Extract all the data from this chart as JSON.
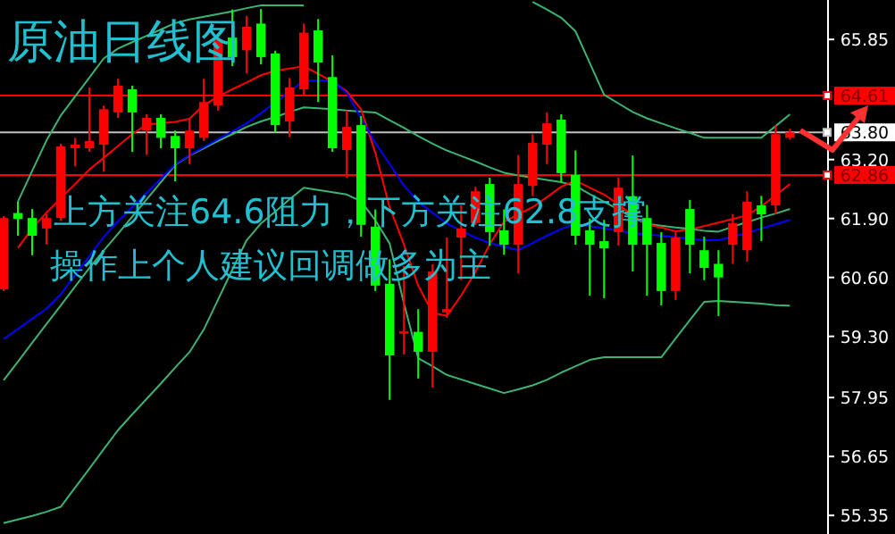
{
  "chart_data": {
    "type": "candlestick",
    "title": "原油日线图",
    "annotations": [
      "上方关注64.6阻力，下方关注62.8支撑",
      "操作上个人建议回调做多为主"
    ],
    "categories": [
      null,
      null,
      null,
      null,
      null,
      null,
      null,
      null,
      null,
      null,
      null,
      null,
      null,
      null,
      null,
      null,
      null,
      null,
      null,
      null,
      null,
      null,
      null,
      null,
      null,
      null,
      null,
      null,
      null,
      null,
      null,
      null,
      null,
      null,
      null,
      null,
      null,
      null,
      null,
      null,
      null,
      null,
      null,
      null,
      null,
      null,
      null,
      null,
      null,
      null,
      null,
      null,
      null,
      null,
      null,
      null
    ],
    "ohlc": [
      [
        60.34,
        61.95,
        60.3,
        61.91
      ],
      [
        62.02,
        62.27,
        61.52,
        61.89
      ],
      [
        61.91,
        62.11,
        61.09,
        61.52
      ],
      [
        61.68,
        62.0,
        61.33,
        61.91
      ],
      [
        61.91,
        63.55,
        61.85,
        63.49
      ],
      [
        63.45,
        63.68,
        63.05,
        63.53
      ],
      [
        63.45,
        64.79,
        63.37,
        63.61
      ],
      [
        63.53,
        64.39,
        62.93,
        64.31
      ],
      [
        64.24,
        64.98,
        64.12,
        64.83
      ],
      [
        64.75,
        64.83,
        63.37,
        64.24
      ],
      [
        63.84,
        64.2,
        63.3,
        64.12
      ],
      [
        64.12,
        64.2,
        63.45,
        63.68
      ],
      [
        63.72,
        63.84,
        62.72,
        63.45
      ],
      [
        63.45,
        64.1,
        63.1,
        63.84
      ],
      [
        63.68,
        64.98,
        63.61,
        64.47
      ],
      [
        64.39,
        65.89,
        64.28,
        65.85
      ],
      [
        65.89,
        66.51,
        65.26,
        65.46
      ],
      [
        65.61,
        66.37,
        65.1,
        66.13
      ],
      [
        66.2,
        66.52,
        65.3,
        65.46
      ],
      [
        65.54,
        65.6,
        63.8,
        63.96
      ],
      [
        64.04,
        65.0,
        63.7,
        64.79
      ],
      [
        64.75,
        66.2,
        64.6,
        66.0
      ],
      [
        66.05,
        66.3,
        64.47,
        65.34
      ],
      [
        65.02,
        65.5,
        63.37,
        63.45
      ],
      [
        63.41,
        64.28,
        62.8,
        63.92
      ],
      [
        63.96,
        64.16,
        61.5,
        61.76
      ],
      [
        61.72,
        62.1,
        60.3,
        60.42
      ],
      [
        60.46,
        61.0,
        57.9,
        58.88
      ],
      [
        59.36,
        60.85,
        58.9,
        59.41
      ],
      [
        59.4,
        59.9,
        58.37,
        58.96
      ],
      [
        58.96,
        60.89,
        58.17,
        60.73
      ],
      [
        59.83,
        61.48,
        59.71,
        59.9
      ],
      [
        61.48,
        62.19,
        60.54,
        61.68
      ],
      [
        61.8,
        62.6,
        61.76,
        62.5
      ],
      [
        62.66,
        62.8,
        61.3,
        61.6
      ],
      [
        61.64,
        62.1,
        61.1,
        61.32
      ],
      [
        61.32,
        63.3,
        60.69,
        62.66
      ],
      [
        62.62,
        63.76,
        62.4,
        63.57
      ],
      [
        63.53,
        64.24,
        63.1,
        64.0
      ],
      [
        64.08,
        64.2,
        62.7,
        62.9
      ],
      [
        62.86,
        63.4,
        61.32,
        61.52
      ],
      [
        61.64,
        61.9,
        60.2,
        61.32
      ],
      [
        61.4,
        61.87,
        60.14,
        61.24
      ],
      [
        61.6,
        62.8,
        61.3,
        62.58
      ],
      [
        62.39,
        63.29,
        60.73,
        61.32
      ],
      [
        61.91,
        62.2,
        60.2,
        61.32
      ],
      [
        61.36,
        61.6,
        59.98,
        60.3
      ],
      [
        60.3,
        61.6,
        60.1,
        61.48
      ],
      [
        62.11,
        62.31,
        60.69,
        61.32
      ],
      [
        61.2,
        61.5,
        60.54,
        60.81
      ],
      [
        60.9,
        61.2,
        59.75,
        60.6
      ],
      [
        61.32,
        62.0,
        60.9,
        61.8
      ],
      [
        61.2,
        62.5,
        60.95,
        62.27
      ],
      [
        62.19,
        62.4,
        61.4,
        61.99
      ],
      [
        62.19,
        63.96,
        61.99,
        63.76
      ],
      [
        63.68,
        63.88,
        63.64,
        63.8
      ]
    ],
    "colors": [
      "#ff0000",
      "#00ff00",
      "#00ff00",
      "#ff0000",
      "#ff0000",
      "#ff0000",
      "#ff0000",
      "#ff0000",
      "#ff0000",
      "#00ff00",
      "#ff0000",
      "#00ff00",
      "#00ff00",
      "#ff0000",
      "#ff0000",
      "#ff0000",
      "#00ff00",
      "#ff0000",
      "#00ff00",
      "#00ff00",
      "#ff0000",
      "#ff0000",
      "#00ff00",
      "#00ff00",
      "#ff0000",
      "#00ff00",
      "#00ff00",
      "#00ff00",
      "#ff0000",
      "#00ff00",
      "#ff0000",
      "#ff0000",
      "#ff0000",
      "#ff0000",
      "#00ff00",
      "#00ff00",
      "#ff0000",
      "#ff0000",
      "#ff0000",
      "#00ff00",
      "#00ff00",
      "#00ff00",
      "#00ff00",
      "#ff0000",
      "#00ff00",
      "#00ff00",
      "#00ff00",
      "#ff0000",
      "#00ff00",
      "#00ff00",
      "#00ff00",
      "#ff0000",
      "#ff0000",
      "#00ff00",
      "#ff0000",
      "#ff0000"
    ],
    "series": [
      {
        "type": "line",
        "color": "#3cb371",
        "values": [
          null,
          62.27,
          62.95,
          63.62,
          64.17,
          64.59,
          65.01,
          65.43,
          65.65,
          65.79,
          65.93,
          66.07,
          66.21,
          66.29,
          66.35,
          66.41,
          66.47,
          66.54,
          66.6,
          66.6,
          66.6,
          66.6,
          null,
          null,
          null,
          null,
          null,
          null,
          null,
          null,
          null,
          null,
          null,
          null,
          null,
          null,
          null,
          66.68,
          66.51,
          66.33,
          66.03,
          65.33,
          64.63,
          64.44,
          64.25,
          64.11,
          64.0,
          63.89,
          63.79,
          63.68,
          63.68,
          63.68,
          63.68,
          63.68,
          63.94,
          64.2
        ]
      },
      {
        "type": "line",
        "color": "#3cb371",
        "values": [
          58.33,
          58.74,
          59.16,
          59.57,
          59.98,
          60.4,
          60.81,
          61.19,
          61.56,
          61.94,
          62.32,
          62.7,
          63.08,
          63.29,
          63.45,
          63.61,
          63.76,
          63.92,
          64.04,
          64.14,
          64.25,
          64.35,
          64.33,
          64.31,
          64.28,
          64.26,
          64.24,
          64.07,
          63.9,
          63.72,
          63.55,
          63.4,
          63.28,
          63.16,
          63.03,
          62.91,
          62.85,
          62.8,
          62.75,
          62.7,
          62.62,
          62.44,
          62.27,
          62.1,
          61.92,
          61.78,
          61.74,
          61.7,
          61.67,
          61.63,
          61.61,
          61.72,
          61.82,
          61.92,
          62.01,
          62.11
        ]
      },
      {
        "type": "line",
        "color": "#3cb371",
        "values": [
          55.18,
          55.26,
          55.34,
          55.43,
          55.54,
          55.96,
          56.38,
          56.81,
          57.23,
          57.58,
          57.92,
          58.26,
          58.61,
          58.95,
          59.45,
          60.11,
          60.77,
          61.42,
          61.79,
          62.05,
          62.32,
          62.58,
          62.53,
          62.48,
          62.43,
          62.28,
          61.86,
          61.35,
          60.03,
          58.82,
          58.64,
          58.45,
          58.35,
          58.25,
          58.15,
          58.05,
          58.13,
          58.22,
          58.34,
          58.5,
          58.64,
          58.78,
          58.84,
          58.84,
          58.84,
          58.84,
          58.84,
          59.25,
          59.66,
          60.06,
          60.08,
          60.06,
          60.04,
          60.02,
          59.99,
          59.98
        ]
      },
      {
        "type": "line",
        "color": "#ff0000",
        "values": [
          null,
          61.25,
          61.68,
          62.03,
          62.35,
          62.66,
          62.98,
          63.24,
          63.5,
          63.76,
          63.97,
          64.0,
          64.03,
          64.1,
          64.4,
          64.59,
          64.75,
          64.9,
          65.06,
          65.16,
          65.21,
          65.26,
          65.09,
          64.92,
          64.71,
          64.31,
          63.35,
          62.15,
          61.33,
          60.42,
          59.82,
          59.75,
          60.2,
          60.72,
          61.33,
          61.83,
          61.99,
          62.15,
          62.37,
          62.6,
          62.74,
          62.58,
          62.43,
          62.21,
          61.97,
          61.77,
          61.7,
          61.62,
          61.66,
          61.73,
          61.81,
          61.89,
          61.97,
          62.17,
          62.41,
          62.66
        ]
      },
      {
        "type": "line",
        "color": "#0000ff",
        "values": [
          59.24,
          59.46,
          59.69,
          59.91,
          60.23,
          60.65,
          61.07,
          61.49,
          61.84,
          62.15,
          62.46,
          62.78,
          63.09,
          63.3,
          63.47,
          63.65,
          63.82,
          64.0,
          64.22,
          64.46,
          64.7,
          64.94,
          64.94,
          64.94,
          64.67,
          64.12,
          63.57,
          63.1,
          62.63,
          62.27,
          62.03,
          61.79,
          61.63,
          61.48,
          61.36,
          61.28,
          61.2,
          61.36,
          61.52,
          61.67,
          61.78,
          61.73,
          61.68,
          61.63,
          61.58,
          61.55,
          61.52,
          61.49,
          61.46,
          61.42,
          61.42,
          61.5,
          61.58,
          61.68,
          61.77,
          61.87
        ]
      }
    ],
    "ylim": [
      54.94,
      66.72
    ],
    "yticks": [
      {
        "value": 65.85,
        "label": "65.85"
      },
      {
        "value": 63.2,
        "label": "63.20"
      },
      {
        "value": 61.9,
        "label": "61.90"
      },
      {
        "value": 60.6,
        "label": "60.60"
      },
      {
        "value": 59.3,
        "label": "59.30"
      },
      {
        "value": 57.95,
        "label": "57.95"
      },
      {
        "value": 56.65,
        "label": "56.65"
      },
      {
        "value": 55.35,
        "label": "55.35"
      }
    ],
    "tick_labels": "y",
    "ref_lines": [
      {
        "axis": "y",
        "value": 64.61,
        "label": "64.61",
        "color": "#ff0000"
      },
      {
        "axis": "y",
        "value": 63.8,
        "label": "63.80",
        "color": "#c0c0c0"
      },
      {
        "axis": "y",
        "value": 62.86,
        "label": "62.86",
        "color": "#ff0000"
      }
    ]
  }
}
